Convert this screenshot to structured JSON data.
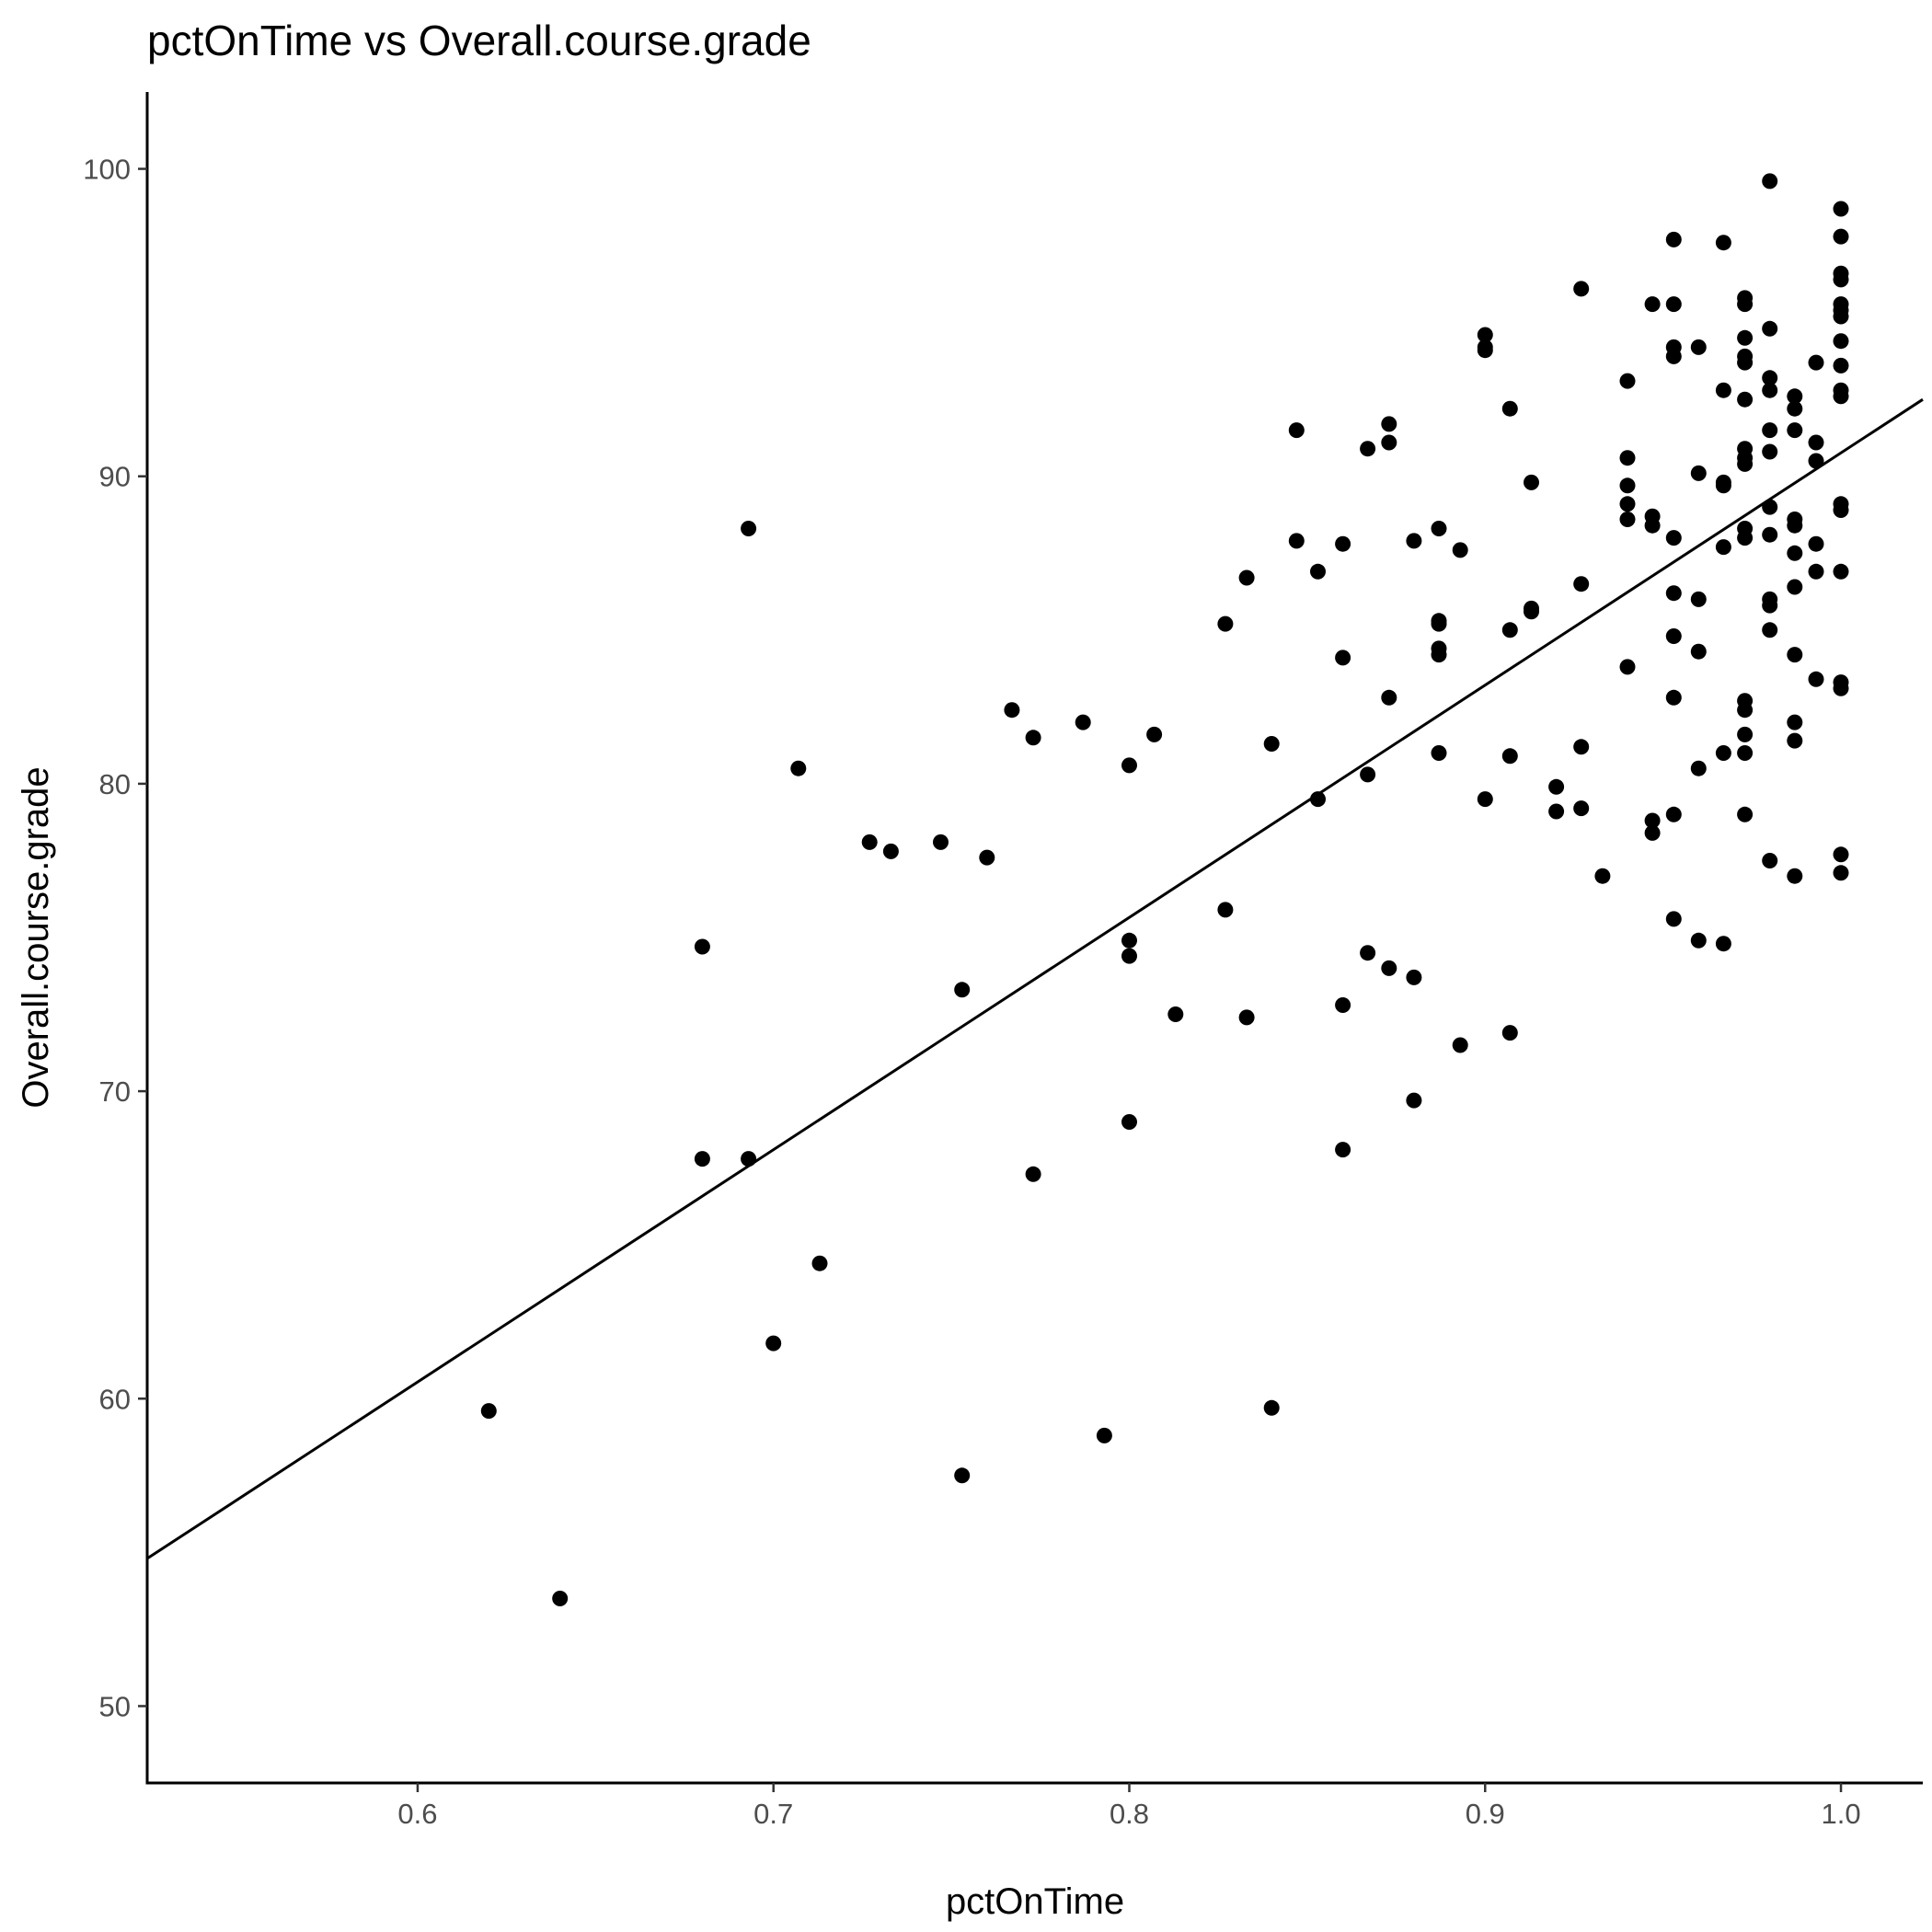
{
  "chart_data": {
    "type": "scatter",
    "title": "pctOnTime vs Overall.course.grade",
    "xlabel": "pctOnTime",
    "ylabel": "Overall.course.grade",
    "xlim": [
      0.524,
      1.023
    ],
    "ylim": [
      47.5,
      102.5
    ],
    "x_ticks": [
      0.6,
      0.7,
      0.8,
      0.9,
      1.0
    ],
    "x_tick_labels": [
      "0.6",
      "0.7",
      "0.8",
      "0.9",
      "1.0"
    ],
    "y_ticks": [
      50,
      60,
      70,
      80,
      90,
      100
    ],
    "y_tick_labels": [
      "50",
      "60",
      "70",
      "80",
      "90",
      "100"
    ],
    "grid": false,
    "legend": "none",
    "trendline": {
      "type": "linear",
      "x": [
        0.524,
        1.023
      ],
      "y": [
        54.8,
        92.5
      ]
    },
    "series": [
      {
        "points": [
          [
            0.62,
            59.6
          ],
          [
            0.64,
            53.5
          ],
          [
            0.68,
            74.7
          ],
          [
            0.68,
            67.8
          ],
          [
            0.693,
            88.3
          ],
          [
            0.693,
            67.8
          ],
          [
            0.7,
            61.8
          ],
          [
            0.707,
            80.5
          ],
          [
            0.713,
            64.4
          ],
          [
            0.727,
            78.1
          ],
          [
            0.733,
            77.8
          ],
          [
            0.747,
            78.1
          ],
          [
            0.753,
            73.3
          ],
          [
            0.753,
            57.5
          ],
          [
            0.76,
            77.6
          ],
          [
            0.767,
            82.4
          ],
          [
            0.773,
            81.5
          ],
          [
            0.773,
            67.3
          ],
          [
            0.787,
            82.0
          ],
          [
            0.793,
            58.8
          ],
          [
            0.8,
            80.6
          ],
          [
            0.8,
            74.9
          ],
          [
            0.8,
            74.4
          ],
          [
            0.8,
            69.0
          ],
          [
            0.807,
            81.6
          ],
          [
            0.813,
            72.5
          ],
          [
            0.827,
            85.2
          ],
          [
            0.827,
            75.9
          ],
          [
            0.833,
            86.7
          ],
          [
            0.833,
            72.4
          ],
          [
            0.84,
            81.3
          ],
          [
            0.84,
            59.7
          ],
          [
            0.847,
            91.5
          ],
          [
            0.847,
            87.9
          ],
          [
            0.853,
            86.9
          ],
          [
            0.853,
            79.5
          ],
          [
            0.86,
            87.8
          ],
          [
            0.86,
            84.1
          ],
          [
            0.86,
            72.8
          ],
          [
            0.86,
            68.1
          ],
          [
            0.867,
            90.9
          ],
          [
            0.867,
            80.3
          ],
          [
            0.867,
            74.5
          ],
          [
            0.873,
            91.7
          ],
          [
            0.873,
            91.1
          ],
          [
            0.873,
            82.8
          ],
          [
            0.873,
            74.0
          ],
          [
            0.88,
            87.9
          ],
          [
            0.88,
            73.7
          ],
          [
            0.88,
            69.7
          ],
          [
            0.887,
            88.3
          ],
          [
            0.887,
            85.3
          ],
          [
            0.887,
            85.2
          ],
          [
            0.887,
            84.4
          ],
          [
            0.887,
            84.2
          ],
          [
            0.887,
            81.0
          ],
          [
            0.893,
            87.6
          ],
          [
            0.893,
            71.5
          ],
          [
            0.9,
            94.6
          ],
          [
            0.9,
            94.2
          ],
          [
            0.9,
            94.1
          ],
          [
            0.9,
            79.5
          ],
          [
            0.907,
            92.2
          ],
          [
            0.907,
            85.0
          ],
          [
            0.907,
            80.9
          ],
          [
            0.907,
            71.9
          ],
          [
            0.913,
            89.8
          ],
          [
            0.913,
            85.7
          ],
          [
            0.913,
            85.6
          ],
          [
            0.92,
            79.9
          ],
          [
            0.92,
            79.1
          ],
          [
            0.927,
            96.1
          ],
          [
            0.927,
            86.5
          ],
          [
            0.927,
            81.2
          ],
          [
            0.927,
            79.2
          ],
          [
            0.933,
            77.0
          ],
          [
            0.94,
            93.1
          ],
          [
            0.94,
            90.6
          ],
          [
            0.94,
            89.7
          ],
          [
            0.94,
            89.1
          ],
          [
            0.94,
            88.6
          ],
          [
            0.94,
            83.8
          ],
          [
            0.947,
            95.6
          ],
          [
            0.947,
            88.7
          ],
          [
            0.947,
            88.4
          ],
          [
            0.947,
            78.8
          ],
          [
            0.947,
            78.4
          ],
          [
            0.953,
            97.7
          ],
          [
            0.953,
            95.6
          ],
          [
            0.953,
            94.2
          ],
          [
            0.953,
            93.9
          ],
          [
            0.953,
            88.0
          ],
          [
            0.953,
            86.2
          ],
          [
            0.953,
            84.8
          ],
          [
            0.953,
            82.8
          ],
          [
            0.953,
            79.0
          ],
          [
            0.953,
            75.6
          ],
          [
            0.96,
            94.2
          ],
          [
            0.96,
            90.1
          ],
          [
            0.96,
            86.0
          ],
          [
            0.96,
            84.3
          ],
          [
            0.96,
            80.5
          ],
          [
            0.96,
            74.9
          ],
          [
            0.967,
            97.6
          ],
          [
            0.967,
            92.8
          ],
          [
            0.967,
            89.8
          ],
          [
            0.967,
            89.7
          ],
          [
            0.967,
            87.7
          ],
          [
            0.967,
            81.0
          ],
          [
            0.967,
            74.8
          ],
          [
            0.973,
            95.8
          ],
          [
            0.973,
            95.6
          ],
          [
            0.973,
            94.5
          ],
          [
            0.973,
            93.9
          ],
          [
            0.973,
            93.7
          ],
          [
            0.973,
            92.5
          ],
          [
            0.973,
            90.9
          ],
          [
            0.973,
            90.6
          ],
          [
            0.973,
            90.4
          ],
          [
            0.973,
            88.3
          ],
          [
            0.973,
            88.0
          ],
          [
            0.973,
            82.7
          ],
          [
            0.973,
            82.4
          ],
          [
            0.973,
            81.6
          ],
          [
            0.973,
            81.0
          ],
          [
            0.973,
            79.0
          ],
          [
            0.98,
            99.6
          ],
          [
            0.98,
            94.8
          ],
          [
            0.98,
            93.2
          ],
          [
            0.98,
            92.8
          ],
          [
            0.98,
            91.5
          ],
          [
            0.98,
            90.8
          ],
          [
            0.98,
            89.0
          ],
          [
            0.98,
            88.1
          ],
          [
            0.98,
            86.0
          ],
          [
            0.98,
            85.8
          ],
          [
            0.98,
            85.0
          ],
          [
            0.98,
            77.5
          ],
          [
            0.987,
            92.6
          ],
          [
            0.987,
            92.2
          ],
          [
            0.987,
            91.5
          ],
          [
            0.987,
            88.6
          ],
          [
            0.987,
            88.4
          ],
          [
            0.987,
            87.5
          ],
          [
            0.987,
            86.4
          ],
          [
            0.987,
            84.2
          ],
          [
            0.987,
            82.0
          ],
          [
            0.987,
            81.4
          ],
          [
            0.987,
            77.0
          ],
          [
            0.993,
            93.7
          ],
          [
            0.993,
            91.1
          ],
          [
            0.993,
            90.5
          ],
          [
            0.993,
            87.8
          ],
          [
            0.993,
            86.9
          ],
          [
            0.993,
            83.4
          ],
          [
            1.0,
            98.7
          ],
          [
            1.0,
            97.8
          ],
          [
            1.0,
            96.6
          ],
          [
            1.0,
            96.4
          ],
          [
            1.0,
            95.6
          ],
          [
            1.0,
            95.4
          ],
          [
            1.0,
            95.2
          ],
          [
            1.0,
            94.4
          ],
          [
            1.0,
            93.6
          ],
          [
            1.0,
            92.8
          ],
          [
            1.0,
            92.6
          ],
          [
            1.0,
            89.1
          ],
          [
            1.0,
            88.9
          ],
          [
            1.0,
            86.9
          ],
          [
            1.0,
            83.3
          ],
          [
            1.0,
            83.1
          ],
          [
            1.0,
            77.7
          ],
          [
            1.0,
            77.1
          ]
        ]
      }
    ]
  }
}
